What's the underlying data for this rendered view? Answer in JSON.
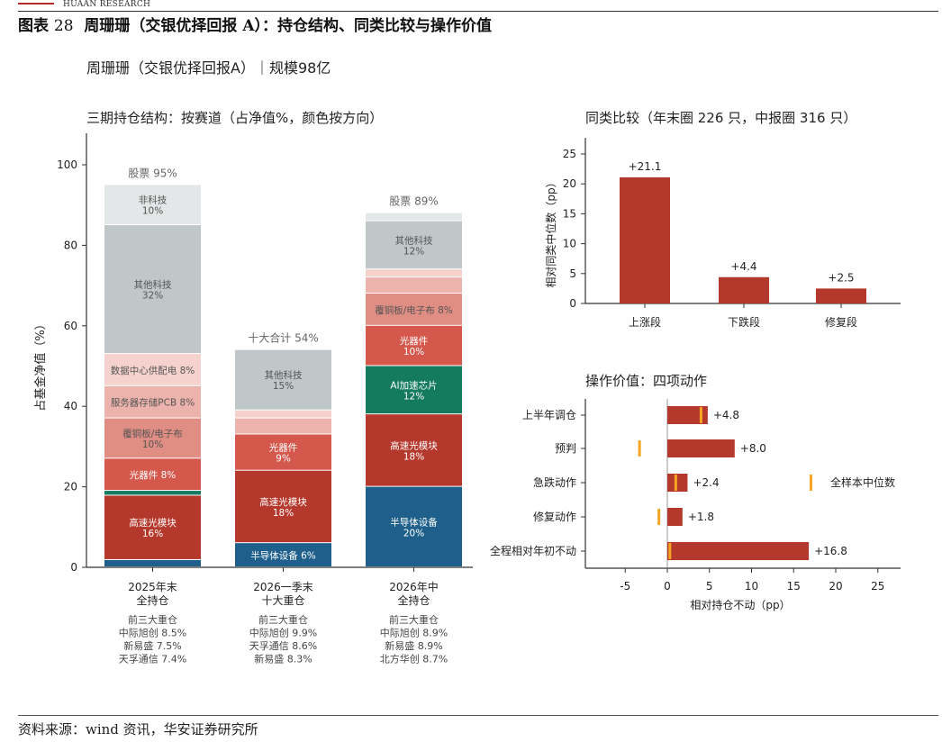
{
  "header": {
    "brand": "HUAAN RESEARCH"
  },
  "figure": {
    "label": "图表",
    "number": "28",
    "title": "周珊珊（交银优择回报 A）：持仓结构、同类比较与操作价值",
    "suptitle": "周珊珊（交银优择回报A）｜规模98亿",
    "source": "资料来源：wind 资讯，华安证券研究所"
  },
  "colors": {
    "半导体设备": "#1f5f8b",
    "高速光模块": "#b5382c",
    "AI加速芯片": "#147a60",
    "光器件": "#d4584c",
    "覆铜板/电子布": "#e08d84",
    "服务器存储PCB": "#ecb3ac",
    "数据中心供配电": "#f5d2cd",
    "其他科技": "#bfc7c8",
    "非科技": "#e3e7e7",
    "bar_red": "#b5382c",
    "median_marker": "#f5a623"
  },
  "chart_data": [
    {
      "type": "bar",
      "stacked": true,
      "title": "三期持仓结构：按赛道（占净值%，颜色按方向）",
      "ylabel": "占基金净值（%）",
      "ylim": [
        0,
        110
      ],
      "yticks": [
        0,
        20,
        40,
        60,
        80,
        100
      ],
      "categories": [
        {
          "line1": "2025年末",
          "line2": "全持仓",
          "total_label": "股票 95%",
          "note_lines": [
            "前三大重仓",
            "中际旭创 8.5%",
            "新易盛 7.5%",
            "天孚通信 7.4%"
          ]
        },
        {
          "line1": "2026一季末",
          "line2": "十大重仓",
          "total_label": "十大合计 54%",
          "note_lines": [
            "前三大重仓",
            "中际旭创 9.9%",
            "天孚通信 8.6%",
            "新易盛 8.3%"
          ]
        },
        {
          "line1": "2026年中",
          "line2": "全持仓",
          "total_label": "股票 89%",
          "note_lines": [
            "前三大重仓",
            "中际旭创 8.9%",
            "新易盛 8.9%",
            "北方华创 8.7%"
          ]
        }
      ],
      "stacks": [
        [
          {
            "sector": "半导体设备",
            "value": 1.8,
            "label": ""
          },
          {
            "sector": "高速光模块",
            "value": 16,
            "label": "高速光模块",
            "pct": "16%"
          },
          {
            "sector": "AI加速芯片",
            "value": 1.2,
            "label": ""
          },
          {
            "sector": "光器件",
            "value": 8,
            "label": "光器件 8%"
          },
          {
            "sector": "覆铜板/电子布",
            "value": 10,
            "label": "覆铜板/电子布",
            "pct": "10%"
          },
          {
            "sector": "服务器存储PCB",
            "value": 8,
            "label": "服务器存储PCB 8%"
          },
          {
            "sector": "数据中心供配电",
            "value": 8,
            "label": "数据中心供配电 8%"
          },
          {
            "sector": "其他科技",
            "value": 32,
            "label": "其他科技",
            "pct": "32%"
          },
          {
            "sector": "非科技",
            "value": 10,
            "label": "非科技",
            "pct": "10%"
          }
        ],
        [
          {
            "sector": "半导体设备",
            "value": 6,
            "label": "半导体设备 6%"
          },
          {
            "sector": "高速光模块",
            "value": 18,
            "label": "高速光模块",
            "pct": "18%"
          },
          {
            "sector": "光器件",
            "value": 9,
            "label": "光器件",
            "pct": "9%"
          },
          {
            "sector": "服务器存储PCB",
            "value": 4,
            "label": ""
          },
          {
            "sector": "数据中心供配电",
            "value": 2,
            "label": ""
          },
          {
            "sector": "其他科技",
            "value": 15,
            "label": "其他科技",
            "pct": "15%"
          }
        ],
        [
          {
            "sector": "半导体设备",
            "value": 20,
            "label": "半导体设备",
            "pct": "20%"
          },
          {
            "sector": "高速光模块",
            "value": 18,
            "label": "高速光模块",
            "pct": "18%"
          },
          {
            "sector": "AI加速芯片",
            "value": 12,
            "label": "AI加速芯片",
            "pct": "12%"
          },
          {
            "sector": "光器件",
            "value": 10,
            "label": "光器件",
            "pct": "10%"
          },
          {
            "sector": "覆铜板/电子布",
            "value": 8,
            "label": "覆铜板/电子布 8%"
          },
          {
            "sector": "服务器存储PCB",
            "value": 4,
            "label": ""
          },
          {
            "sector": "数据中心供配电",
            "value": 2,
            "label": ""
          },
          {
            "sector": "其他科技",
            "value": 12,
            "label": "其他科技",
            "pct": "12%"
          },
          {
            "sector": "非科技",
            "value": 2,
            "label": ""
          }
        ]
      ]
    },
    {
      "type": "bar",
      "title": "同类比较（年末圈 226 只，中报圈 316 只）",
      "ylabel": "相对同类中位数（pp）",
      "ylim": [
        0,
        28
      ],
      "yticks": [
        0,
        5,
        10,
        15,
        20,
        25
      ],
      "categories": [
        "上涨段",
        "下跌段",
        "修复段"
      ],
      "values": [
        21.1,
        4.4,
        2.5
      ],
      "value_labels": [
        "+21.1",
        "+4.4",
        "+2.5"
      ]
    },
    {
      "type": "bar",
      "orientation": "horizontal",
      "title": "操作价值：四项动作",
      "xlabel": "相对持仓不动（pp）",
      "xlim": [
        -9,
        27
      ],
      "xticks": [
        -5,
        0,
        5,
        10,
        15,
        20,
        25
      ],
      "categories": [
        "上半年调仓",
        "预判",
        "急跌动作",
        "修复动作",
        "全程相对年初不动"
      ],
      "values": [
        4.8,
        8.0,
        2.4,
        1.8,
        16.8
      ],
      "value_labels": [
        "+4.8",
        "+8.0",
        "+2.4",
        "+1.8",
        "+16.8"
      ],
      "median_markers": [
        4.0,
        -3.3,
        1.0,
        -1.0,
        0.3
      ],
      "legend": {
        "label": "全样本中位数",
        "placement": "right"
      }
    }
  ]
}
